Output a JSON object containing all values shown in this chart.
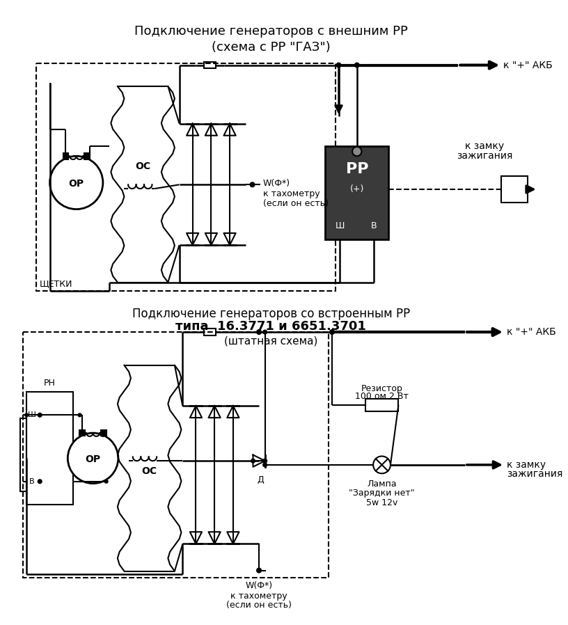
{
  "title1": "Подключение генераторов с внешним РР",
  "title1b": "(схема с РР \"ГАЗ\")",
  "title2": "Подключение генераторов со встроенным РР",
  "title2b": "типа  16.3771 и 6651.3701",
  "title2c": "(штатная схема)",
  "bg_color": "#f0f4f8",
  "line_color": "#000000"
}
